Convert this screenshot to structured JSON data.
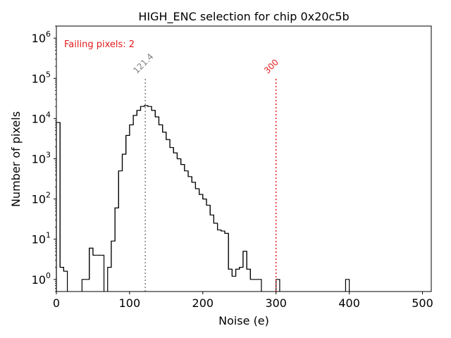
{
  "chart_data": {
    "type": "histogram",
    "title": "HIGH_ENC selection for chip 0x20c5b",
    "xlabel": "Noise (e)",
    "ylabel": "Number of pixels",
    "xlim": [
      0,
      512
    ],
    "ylim": [
      0.5,
      2000000
    ],
    "yscale": "log",
    "grid": false,
    "x_ticks": [
      0,
      100,
      200,
      300,
      400,
      500
    ],
    "x_tick_labels": [
      "0",
      "100",
      "200",
      "300",
      "400",
      "500"
    ],
    "y_ticks": [
      1,
      10,
      100,
      1000,
      10000,
      100000,
      1000000
    ],
    "y_tick_labels": [
      {
        "base": "10",
        "exp": "0"
      },
      {
        "base": "10",
        "exp": "1"
      },
      {
        "base": "10",
        "exp": "2"
      },
      {
        "base": "10",
        "exp": "3"
      },
      {
        "base": "10",
        "exp": "4"
      },
      {
        "base": "10",
        "exp": "5"
      },
      {
        "base": "10",
        "exp": "6"
      }
    ],
    "annotation": {
      "text": "Failing pixels: 2",
      "color": "#e31a1c"
    },
    "vlines": [
      {
        "x": 121.4,
        "label": "121.4",
        "color": "#808080"
      },
      {
        "x": 300,
        "label": "300",
        "color": "#e31a1c"
      }
    ],
    "histogram_color": "#000000",
    "bins": [
      [
        0,
        5,
        8000
      ],
      [
        5,
        10,
        2
      ],
      [
        10,
        15,
        1.6
      ],
      [
        15,
        35,
        0
      ],
      [
        35,
        45,
        1
      ],
      [
        45,
        50,
        6
      ],
      [
        50,
        55,
        4
      ],
      [
        55,
        65,
        4
      ],
      [
        65,
        70,
        0
      ],
      [
        70,
        75,
        2
      ],
      [
        75,
        80,
        9
      ],
      [
        80,
        85,
        60
      ],
      [
        85,
        90,
        500
      ],
      [
        90,
        95,
        1300
      ],
      [
        95,
        100,
        3800
      ],
      [
        100,
        105,
        7000
      ],
      [
        105,
        110,
        12000
      ],
      [
        110,
        115,
        16000
      ],
      [
        115,
        120,
        20000
      ],
      [
        120,
        125,
        21000
      ],
      [
        125,
        130,
        20000
      ],
      [
        130,
        135,
        16000
      ],
      [
        135,
        140,
        11000
      ],
      [
        140,
        145,
        7000
      ],
      [
        145,
        150,
        4600
      ],
      [
        150,
        155,
        3000
      ],
      [
        155,
        160,
        1900
      ],
      [
        160,
        165,
        1400
      ],
      [
        165,
        170,
        1000
      ],
      [
        170,
        175,
        720
      ],
      [
        175,
        180,
        500
      ],
      [
        180,
        185,
        360
      ],
      [
        185,
        190,
        260
      ],
      [
        190,
        195,
        180
      ],
      [
        195,
        200,
        130
      ],
      [
        200,
        205,
        100
      ],
      [
        205,
        210,
        70
      ],
      [
        210,
        215,
        40
      ],
      [
        215,
        220,
        25
      ],
      [
        220,
        225,
        17
      ],
      [
        225,
        230,
        16
      ],
      [
        230,
        235,
        14
      ],
      [
        235,
        240,
        1.8
      ],
      [
        240,
        245,
        1.2
      ],
      [
        245,
        250,
        1.8
      ],
      [
        250,
        255,
        2
      ],
      [
        255,
        260,
        5
      ],
      [
        260,
        265,
        1.8
      ],
      [
        265,
        280,
        1
      ],
      [
        280,
        300,
        0
      ],
      [
        300,
        305,
        1
      ],
      [
        305,
        395,
        0
      ],
      [
        395,
        400,
        1
      ]
    ]
  }
}
